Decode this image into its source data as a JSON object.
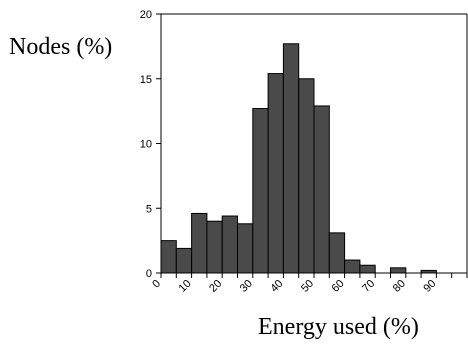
{
  "chart_data": {
    "type": "bar",
    "title": "",
    "xlabel": "Energy used (%)",
    "ylabel": "Nodes (%)",
    "bin_width": 5,
    "bin_starts": [
      0,
      5,
      10,
      15,
      20,
      25,
      30,
      35,
      40,
      45,
      50,
      55,
      60,
      65,
      70,
      75,
      80,
      85,
      90,
      95
    ],
    "values": [
      2.5,
      1.9,
      4.6,
      4.0,
      4.4,
      3.8,
      12.7,
      15.4,
      17.7,
      15.0,
      12.9,
      3.1,
      1.0,
      0.6,
      0.0,
      0.4,
      0.0,
      0.2,
      0.0,
      0.0
    ],
    "xlim": [
      0,
      100
    ],
    "ylim": [
      0,
      20
    ],
    "yticks": [
      0,
      5,
      10,
      15,
      20
    ],
    "xtick_labels": [
      "0",
      "10",
      "20",
      "30",
      "40",
      "50",
      "60",
      "70",
      "80",
      "90"
    ],
    "grid": false,
    "bar_color": "#4a4a4a",
    "frame": "top-and-right"
  }
}
